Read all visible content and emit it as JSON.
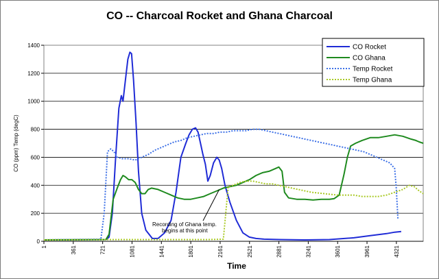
{
  "chart_data": {
    "type": "line",
    "title": "CO -- Charcoal Rocket and Ghana Charcoal",
    "xlabel": "Time",
    "ylabel": "CO (ppm) Temp (degC)",
    "xlim": [
      1,
      4650
    ],
    "ylim": [
      0,
      1400
    ],
    "y_ticks": [
      0,
      200,
      400,
      600,
      800,
      1000,
      1200,
      1400
    ],
    "x_ticks": [
      1,
      361,
      721,
      1081,
      1441,
      1801,
      2161,
      2521,
      2881,
      3241,
      3601,
      3961,
      4321
    ],
    "grid": true,
    "legend_position": "top-right",
    "annotation": {
      "lines": [
        "Recording of Ghana temp.",
        "begins at this point"
      ],
      "point": [
        2150,
        370
      ]
    },
    "series": [
      {
        "name": "CO Rocket",
        "color": "#1f2bd6",
        "style": "solid",
        "points": [
          [
            1,
            10
          ],
          [
            760,
            12
          ],
          [
            800,
            30
          ],
          [
            840,
            200
          ],
          [
            880,
            600
          ],
          [
            920,
            950
          ],
          [
            950,
            1040
          ],
          [
            970,
            1000
          ],
          [
            1000,
            1150
          ],
          [
            1030,
            1300
          ],
          [
            1055,
            1350
          ],
          [
            1075,
            1340
          ],
          [
            1100,
            1150
          ],
          [
            1130,
            850
          ],
          [
            1160,
            500
          ],
          [
            1200,
            200
          ],
          [
            1250,
            80
          ],
          [
            1330,
            20
          ],
          [
            1400,
            20
          ],
          [
            1480,
            60
          ],
          [
            1560,
            150
          ],
          [
            1620,
            350
          ],
          [
            1680,
            600
          ],
          [
            1740,
            700
          ],
          [
            1780,
            760
          ],
          [
            1820,
            800
          ],
          [
            1860,
            810
          ],
          [
            1890,
            780
          ],
          [
            1920,
            700
          ],
          [
            1950,
            620
          ],
          [
            1980,
            550
          ],
          [
            2010,
            430
          ],
          [
            2040,
            470
          ],
          [
            2080,
            560
          ],
          [
            2120,
            600
          ],
          [
            2150,
            580
          ],
          [
            2180,
            520
          ],
          [
            2220,
            400
          ],
          [
            2280,
            280
          ],
          [
            2360,
            150
          ],
          [
            2440,
            60
          ],
          [
            2520,
            30
          ],
          [
            2600,
            20
          ],
          [
            2700,
            15
          ],
          [
            2900,
            12
          ],
          [
            3200,
            10
          ],
          [
            3500,
            12
          ],
          [
            3800,
            25
          ],
          [
            4000,
            40
          ],
          [
            4200,
            55
          ],
          [
            4300,
            65
          ],
          [
            4380,
            70
          ]
        ]
      },
      {
        "name": "CO Ghana",
        "color": "#1e8a1e",
        "style": "solid",
        "points": [
          [
            1,
            10
          ],
          [
            760,
            12
          ],
          [
            800,
            50
          ],
          [
            850,
            300
          ],
          [
            900,
            380
          ],
          [
            940,
            440
          ],
          [
            970,
            470
          ],
          [
            1000,
            460
          ],
          [
            1040,
            440
          ],
          [
            1080,
            440
          ],
          [
            1120,
            420
          ],
          [
            1160,
            370
          ],
          [
            1200,
            340
          ],
          [
            1240,
            340
          ],
          [
            1280,
            370
          ],
          [
            1320,
            380
          ],
          [
            1400,
            370
          ],
          [
            1480,
            350
          ],
          [
            1560,
            330
          ],
          [
            1640,
            310
          ],
          [
            1720,
            300
          ],
          [
            1800,
            300
          ],
          [
            1880,
            310
          ],
          [
            1960,
            320
          ],
          [
            2040,
            340
          ],
          [
            2120,
            360
          ],
          [
            2200,
            380
          ],
          [
            2280,
            390
          ],
          [
            2360,
            400
          ],
          [
            2440,
            420
          ],
          [
            2520,
            440
          ],
          [
            2600,
            470
          ],
          [
            2680,
            490
          ],
          [
            2760,
            500
          ],
          [
            2840,
            520
          ],
          [
            2880,
            530
          ],
          [
            2920,
            500
          ],
          [
            2950,
            350
          ],
          [
            3000,
            310
          ],
          [
            3100,
            300
          ],
          [
            3200,
            300
          ],
          [
            3300,
            295
          ],
          [
            3400,
            300
          ],
          [
            3500,
            300
          ],
          [
            3560,
            305
          ],
          [
            3620,
            330
          ],
          [
            3680,
            480
          ],
          [
            3720,
            600
          ],
          [
            3760,
            680
          ],
          [
            3820,
            700
          ],
          [
            3900,
            720
          ],
          [
            4000,
            740
          ],
          [
            4100,
            740
          ],
          [
            4200,
            750
          ],
          [
            4300,
            760
          ],
          [
            4400,
            750
          ],
          [
            4500,
            730
          ],
          [
            4560,
            720
          ],
          [
            4600,
            710
          ],
          [
            4650,
            700
          ]
        ]
      },
      {
        "name": "Temp Rocket",
        "color": "#3b6fe6",
        "style": "dotted",
        "points": [
          [
            1,
            10
          ],
          [
            700,
            15
          ],
          [
            740,
            200
          ],
          [
            780,
            640
          ],
          [
            820,
            660
          ],
          [
            860,
            640
          ],
          [
            900,
            600
          ],
          [
            960,
            590
          ],
          [
            1040,
            590
          ],
          [
            1120,
            580
          ],
          [
            1200,
            600
          ],
          [
            1280,
            620
          ],
          [
            1360,
            650
          ],
          [
            1440,
            670
          ],
          [
            1520,
            690
          ],
          [
            1600,
            710
          ],
          [
            1680,
            720
          ],
          [
            1760,
            740
          ],
          [
            1840,
            750
          ],
          [
            1920,
            760
          ],
          [
            2000,
            770
          ],
          [
            2080,
            770
          ],
          [
            2160,
            780
          ],
          [
            2240,
            780
          ],
          [
            2320,
            790
          ],
          [
            2400,
            790
          ],
          [
            2480,
            790
          ],
          [
            2560,
            800
          ],
          [
            2640,
            800
          ],
          [
            2720,
            790
          ],
          [
            2800,
            780
          ],
          [
            2880,
            770
          ],
          [
            2960,
            760
          ],
          [
            3040,
            750
          ],
          [
            3120,
            740
          ],
          [
            3200,
            730
          ],
          [
            3280,
            720
          ],
          [
            3360,
            710
          ],
          [
            3440,
            700
          ],
          [
            3520,
            690
          ],
          [
            3600,
            680
          ],
          [
            3680,
            670
          ],
          [
            3760,
            660
          ],
          [
            3840,
            650
          ],
          [
            3920,
            640
          ],
          [
            4000,
            620
          ],
          [
            4080,
            600
          ],
          [
            4160,
            580
          ],
          [
            4240,
            560
          ],
          [
            4300,
            520
          ],
          [
            4320,
            380
          ],
          [
            4340,
            160
          ]
        ]
      },
      {
        "name": "Temp Ghana",
        "color": "#a8c822",
        "style": "dotted",
        "points": [
          [
            1,
            10
          ],
          [
            800,
            12
          ],
          [
            1200,
            12
          ],
          [
            1600,
            12
          ],
          [
            2000,
            12
          ],
          [
            2200,
            15
          ],
          [
            2230,
            200
          ],
          [
            2260,
            390
          ],
          [
            2320,
            400
          ],
          [
            2400,
            420
          ],
          [
            2480,
            430
          ],
          [
            2560,
            430
          ],
          [
            2640,
            420
          ],
          [
            2720,
            410
          ],
          [
            2800,
            410
          ],
          [
            2880,
            400
          ],
          [
            2960,
            390
          ],
          [
            3040,
            380
          ],
          [
            3120,
            370
          ],
          [
            3200,
            360
          ],
          [
            3280,
            350
          ],
          [
            3360,
            345
          ],
          [
            3440,
            340
          ],
          [
            3520,
            335
          ],
          [
            3600,
            330
          ],
          [
            3700,
            330
          ],
          [
            3800,
            330
          ],
          [
            3900,
            320
          ],
          [
            4000,
            320
          ],
          [
            4100,
            320
          ],
          [
            4200,
            330
          ],
          [
            4300,
            350
          ],
          [
            4400,
            370
          ],
          [
            4480,
            400
          ],
          [
            4540,
            390
          ],
          [
            4600,
            360
          ],
          [
            4650,
            340
          ]
        ]
      }
    ]
  }
}
